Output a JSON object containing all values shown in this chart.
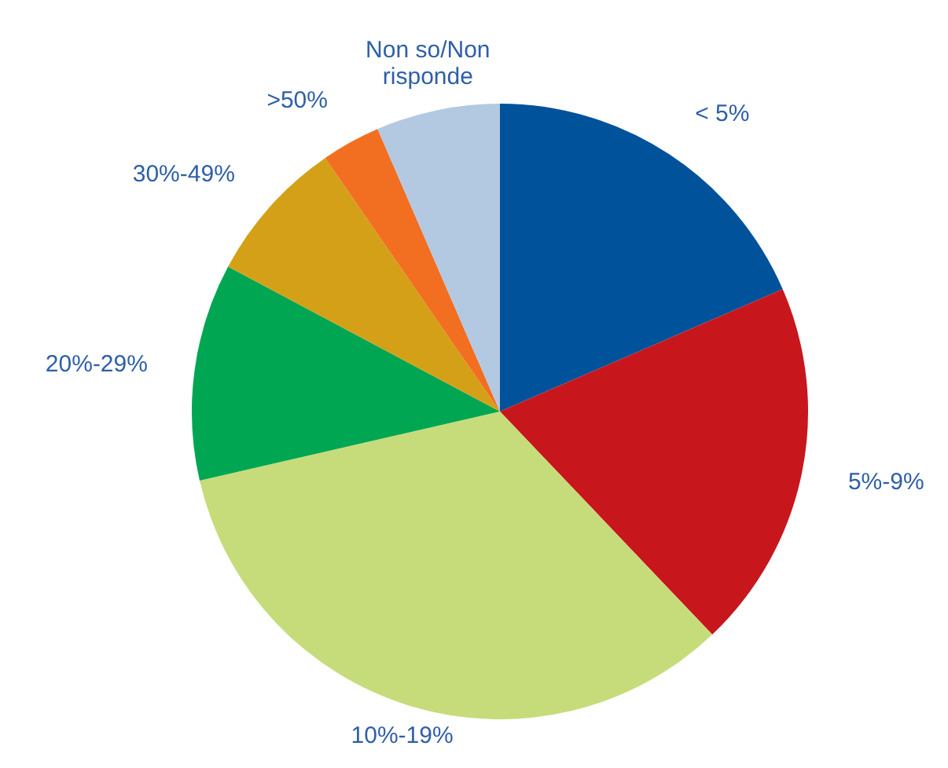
{
  "chart_data": {
    "type": "pie",
    "categories": [
      "< 5%",
      "5%-9%",
      "10%-19%",
      "20%-29%",
      "30%-49%",
      ">50%",
      "Non so/Non risponde"
    ],
    "values": [
      18.5,
      19.4,
      33.5,
      11.4,
      7.6,
      3.1,
      6.5
    ],
    "colors": [
      "#00529b",
      "#c8161d",
      "#c6dc7a",
      "#00a651",
      "#d4a017",
      "#f26f21",
      "#b3c9e1"
    ],
    "legend": false
  }
}
